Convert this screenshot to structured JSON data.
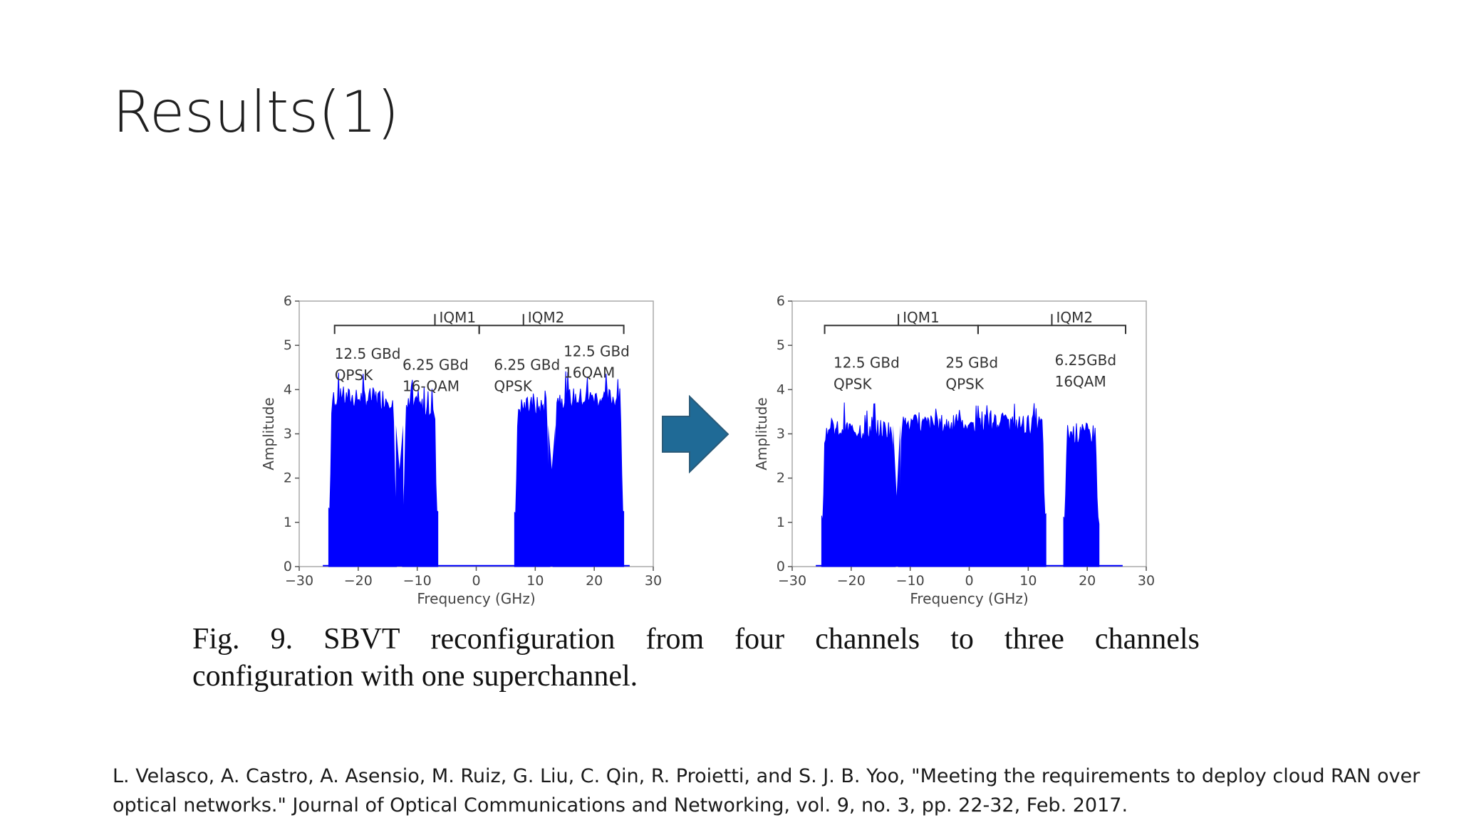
{
  "slide": {
    "title": "Results(1)"
  },
  "figure": {
    "caption_words_line1": [
      "Fig.",
      "9.",
      "SBVT",
      "reconfiguration",
      "from",
      "four",
      "channels",
      "to",
      "three",
      "channels"
    ],
    "caption_line2": "configuration with one superchannel.",
    "arrow_icon": "right-arrow-icon",
    "arrow_color": "#1f6a96"
  },
  "reference": "L. Velasco, A. Castro, A. Asensio, M. Ruiz, G. Liu, C. Qin, R. Proietti, and S. J. B. Yoo, \"Meeting the requirements to deploy cloud RAN over optical networks.\" Journal of Optical Communications and Networking, vol. 9, no. 3, pp. 22-32, Feb. 2017.",
  "chart_data": [
    {
      "type": "area",
      "xlabel": "Frequency (GHz)",
      "ylabel": "Amplitude",
      "xlim": [
        -30,
        30
      ],
      "ylim": [
        0,
        6
      ],
      "xticks": [
        -30,
        -20,
        -10,
        0,
        10,
        20,
        30
      ],
      "yticks": [
        0,
        1,
        2,
        3,
        4,
        5,
        6
      ],
      "color": "#0000ff",
      "bands": [
        {
          "from": -25,
          "to": -13.5,
          "level": 3.8,
          "peak": 4.4
        },
        {
          "from": -12.5,
          "to": -6.5,
          "level": 3.6,
          "peak": 4.3
        },
        {
          "from": 6.5,
          "to": 12.5,
          "level": 3.6,
          "peak": 4.1
        },
        {
          "from": 13,
          "to": 25,
          "level": 3.8,
          "peak": 4.5
        }
      ],
      "dips": [
        {
          "at": -13,
          "value": 2.2
        },
        {
          "at": 12.8,
          "value": 2.2
        }
      ],
      "groups": [
        {
          "label": "IQM1",
          "from": -24,
          "to": 0.5,
          "label_at": -7
        },
        {
          "label": "IQM2",
          "from": 0.5,
          "to": 25,
          "label_at": 8
        }
      ],
      "annotations": [
        {
          "lines": [
            "12.5 GBd",
            "QPSK"
          ],
          "x": -24,
          "y": 4.7
        },
        {
          "lines": [
            "6.25 GBd",
            "16-QAM"
          ],
          "x": -12.5,
          "y": 4.45
        },
        {
          "lines": [
            "6.25 GBd",
            "QPSK"
          ],
          "x": 3,
          "y": 4.45
        },
        {
          "lines": [
            "12.5 GBd",
            "16QAM"
          ],
          "x": 14.8,
          "y": 4.75
        }
      ]
    },
    {
      "type": "area",
      "xlabel": "Frequency (GHz)",
      "ylabel": "Amplitude",
      "xlim": [
        -30,
        30
      ],
      "ylim": [
        0,
        6
      ],
      "xticks": [
        -30,
        -20,
        -10,
        0,
        10,
        20,
        30
      ],
      "yticks": [
        0,
        1,
        2,
        3,
        4,
        5,
        6
      ],
      "color": "#0000ff",
      "bands": [
        {
          "from": -25,
          "to": -12.5,
          "level": 3.1,
          "peak": 3.9
        },
        {
          "from": -12,
          "to": 13,
          "level": 3.2,
          "peak": 3.7
        },
        {
          "from": 16,
          "to": 22,
          "level": 3.0,
          "peak": 3.3
        }
      ],
      "dips": [
        {
          "at": -12.3,
          "value": 1.6
        }
      ],
      "groups": [
        {
          "label": "IQM1",
          "from": -24.5,
          "to": 1.5,
          "label_at": -12
        },
        {
          "label": "IQM2",
          "from": 1.5,
          "to": 26.5,
          "label_at": 14
        }
      ],
      "annotations": [
        {
          "lines": [
            "12.5 GBd",
            "QPSK"
          ],
          "x": -23,
          "y": 4.5
        },
        {
          "lines": [
            "25 GBd",
            "QPSK"
          ],
          "x": -4,
          "y": 4.5
        },
        {
          "lines": [
            "6.25GBd",
            "16QAM"
          ],
          "x": 14.5,
          "y": 4.55
        }
      ]
    }
  ]
}
